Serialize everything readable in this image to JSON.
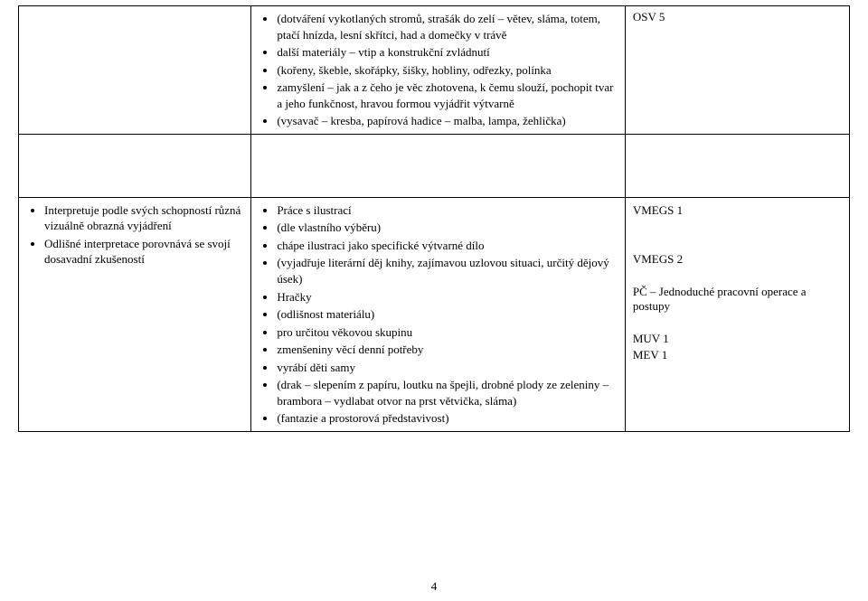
{
  "row1": {
    "col2": {
      "items": [
        "(dotváření vykotlaných stromů, strašák do zelí – větev, sláma, totem, ptačí hnízda, lesní skřítci, had a domečky v trávě",
        "další materiály – vtip a konstrukční zvládnutí",
        "(kořeny, škeble, skořápky, šišky, hobliny, odřezky, polínka",
        "zamyšlení – jak a z čeho je věc zhotovena, k čemu slouží, pochopit tvar a jeho funkčnost, hravou formou vyjádřit výtvarně",
        "(vysavač – kresba, papírová hadice – malba, lampa, žehlička)"
      ]
    },
    "col3": "OSV 5"
  },
  "row2": {
    "col1": {
      "items": [
        "Interpretuje podle svých schopností různá vizuálně obrazná vyjádření",
        "Odlišné interpretace porovnává se svojí dosavadní zkušeností"
      ]
    },
    "col2": {
      "items": [
        "Práce s ilustrací",
        "(dle vlastního výběru)",
        "chápe ilustraci jako specifické výtvarné dílo",
        "(vyjadřuje literární děj knihy, zajímavou uzlovou situaci, určitý dějový úsek)",
        "Hračky",
        "(odlišnost materiálu)",
        "pro určitou věkovou skupinu",
        "zmenšeniny věcí denní potřeby",
        "vyrábí děti samy",
        "(drak – slepením z papíru, loutku na špejli, drobné plody ze zeleniny – brambora – vydlabat otvor na prst větvička, sláma)",
        "(fantazie a prostorová představivost)"
      ]
    },
    "col3": {
      "lines": [
        "VMEGS 1",
        "",
        "",
        "VMEGS 2",
        "",
        "PČ – Jednoduché pracovní operace a postupy",
        "",
        "MUV 1",
        "MEV 1"
      ]
    }
  },
  "page_number": "4"
}
